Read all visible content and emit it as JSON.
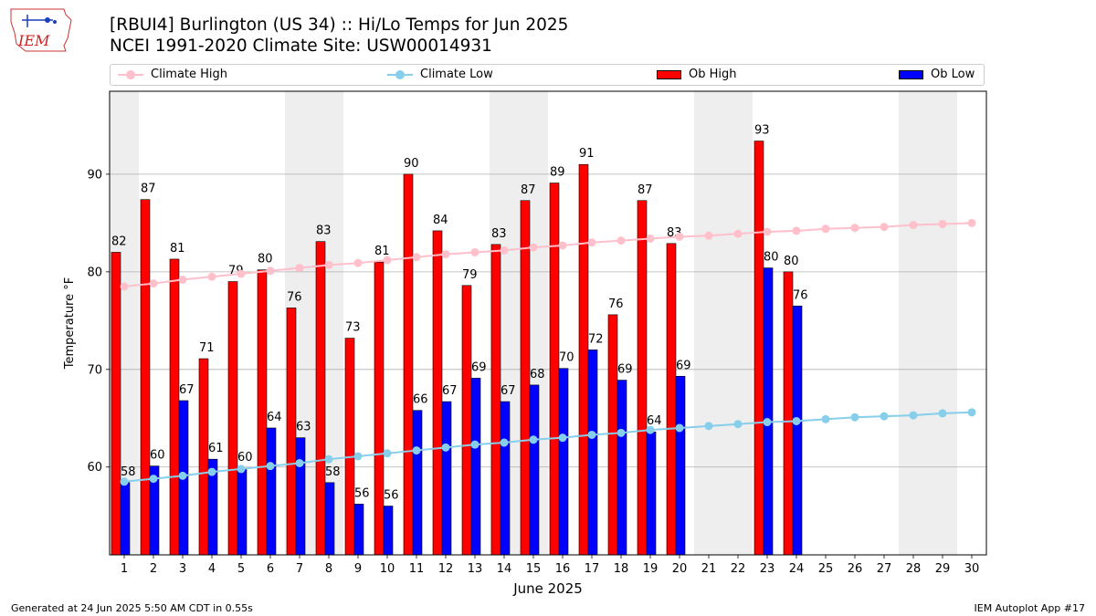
{
  "header": {
    "title_line1": "[RBUI4] Burlington (US 34) :: Hi/Lo Temps for Jun 2025",
    "title_line2": "NCEI 1991-2020 Climate Site: USW00014931",
    "logo_text": "IEM"
  },
  "footer": {
    "generated": "Generated at 24 Jun 2025 5:50 AM CDT in 0.55s",
    "app": "IEM Autoplot App #17"
  },
  "legend": {
    "climate_high": "Climate High",
    "climate_low": "Climate Low",
    "ob_high": "Ob High",
    "ob_low": "Ob Low"
  },
  "colors": {
    "ob_high": "#ff0000",
    "ob_low": "#0000ff",
    "climate_high": "#ffc0cb",
    "climate_low": "#87ceeb",
    "weekend_shade": "#eeeeee",
    "grid": "#b0b0b0"
  },
  "chart_data": {
    "type": "bar",
    "xlabel": "June 2025",
    "ylabel": "Temperature °F",
    "ylim": [
      51,
      98.5
    ],
    "yticks": [
      60,
      70,
      80,
      90
    ],
    "grid": "horizontal",
    "days": [
      1,
      2,
      3,
      4,
      5,
      6,
      7,
      8,
      9,
      10,
      11,
      12,
      13,
      14,
      15,
      16,
      17,
      18,
      19,
      20,
      21,
      22,
      23,
      24,
      25,
      26,
      27,
      28,
      29,
      30
    ],
    "weekend_shaded_days": [
      1,
      7,
      8,
      14,
      15,
      21,
      22,
      28,
      29
    ],
    "ob_high": {
      "name": "Ob High",
      "values": [
        82,
        87.4,
        81.3,
        71.1,
        79,
        80.2,
        76.3,
        83.1,
        73.2,
        81,
        90,
        84.2,
        78.6,
        82.8,
        87.3,
        89.1,
        91,
        75.6,
        87.3,
        82.9,
        null,
        null,
        93.4,
        80,
        null,
        null,
        null,
        null,
        null,
        null
      ],
      "labels": [
        "82",
        "87",
        "81",
        "71",
        "79",
        "80",
        "76",
        "83",
        "73",
        "81",
        "90",
        "84",
        "79",
        "83",
        "87",
        "89",
        "91",
        "76",
        "87",
        "83",
        "",
        "",
        "93",
        "80",
        "",
        "",
        "",
        "",
        "",
        ""
      ]
    },
    "ob_low": {
      "name": "Ob Low",
      "values": [
        58.4,
        60.1,
        66.8,
        60.8,
        59.9,
        64,
        63,
        58.4,
        56.2,
        56,
        65.8,
        66.7,
        69.1,
        66.7,
        68.4,
        70.1,
        72,
        68.9,
        63.6,
        69.3,
        null,
        null,
        80.4,
        76.5,
        null,
        null,
        null,
        null,
        null,
        null
      ],
      "labels": [
        "58",
        "60",
        "67",
        "61",
        "60",
        "64",
        "63",
        "58",
        "56",
        "56",
        "66",
        "67",
        "69",
        "67",
        "68",
        "70",
        "72",
        "69",
        "64",
        "69",
        "",
        "",
        "80",
        "76",
        "",
        "",
        "",
        "",
        "",
        ""
      ]
    },
    "climate_high": {
      "name": "Climate High",
      "values": [
        78.5,
        78.8,
        79.2,
        79.5,
        79.8,
        80.1,
        80.4,
        80.7,
        80.9,
        81.2,
        81.5,
        81.8,
        82.0,
        82.2,
        82.5,
        82.7,
        83.0,
        83.2,
        83.4,
        83.6,
        83.7,
        83.9,
        84.1,
        84.2,
        84.4,
        84.5,
        84.6,
        84.8,
        84.9,
        85.0
      ]
    },
    "climate_low": {
      "name": "Climate Low",
      "values": [
        58.5,
        58.8,
        59.1,
        59.5,
        59.8,
        60.1,
        60.4,
        60.8,
        61.1,
        61.4,
        61.7,
        62.0,
        62.3,
        62.5,
        62.8,
        63.0,
        63.3,
        63.5,
        63.8,
        64.0,
        64.2,
        64.4,
        64.6,
        64.7,
        64.9,
        65.1,
        65.2,
        65.3,
        65.5,
        65.6
      ]
    }
  }
}
